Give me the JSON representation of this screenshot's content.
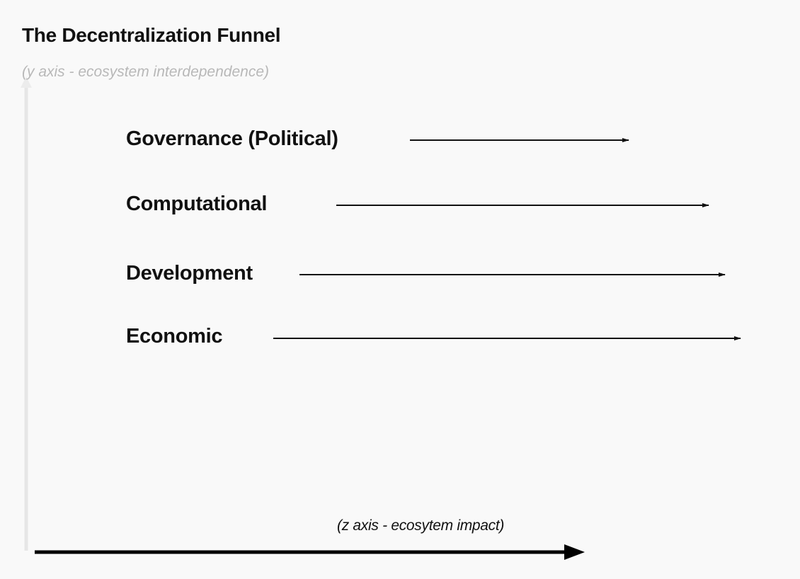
{
  "title": "The Decentralization Funnel",
  "y_axis_label": "(y axis - ecosystem interdependence)",
  "z_axis_label": "(z axis -  ecosytem impact)",
  "categories": [
    {
      "label": "Governance (Political)"
    },
    {
      "label": "Computational"
    },
    {
      "label": "Development"
    },
    {
      "label": "Economic"
    }
  ],
  "colors": {
    "background": "#f9f9f9",
    "text": "#111111",
    "y_axis": "#e6e6e6",
    "y_axis_label": "#b8b8b8"
  }
}
